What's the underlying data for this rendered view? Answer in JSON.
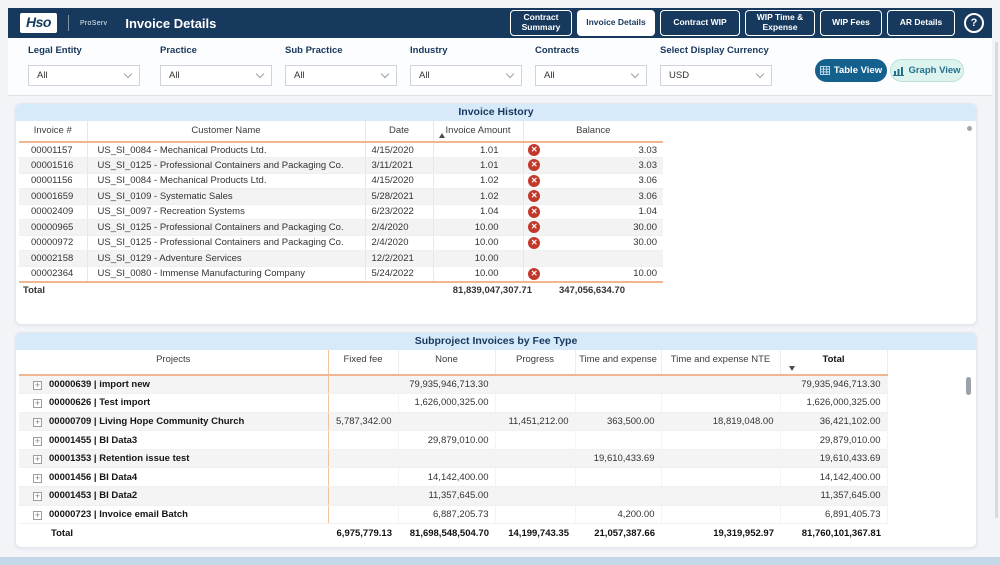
{
  "header": {
    "logo": "Hso",
    "product": "ProServ",
    "title": "Invoice Details",
    "nav_tabs": [
      {
        "label": "Contract Summary",
        "active": false
      },
      {
        "label": "Invoice Details",
        "active": true
      },
      {
        "label": "Contract WIP",
        "active": false
      },
      {
        "label": "WIP Time & Expense",
        "active": false
      },
      {
        "label": "WIP Fees",
        "active": false
      },
      {
        "label": "AR Details",
        "active": false
      }
    ],
    "help_label": "?"
  },
  "filters": [
    {
      "label": "Legal Entity",
      "value": "All"
    },
    {
      "label": "Practice",
      "value": "All"
    },
    {
      "label": "Sub Practice",
      "value": "All"
    },
    {
      "label": "Industry",
      "value": "All"
    },
    {
      "label": "Contracts",
      "value": "All"
    },
    {
      "label": "Select Display Currency",
      "value": "USD"
    }
  ],
  "view_buttons": {
    "table": "Table View",
    "graph": "Graph View"
  },
  "invoice_history": {
    "title": "Invoice History",
    "columns": [
      "Invoice #",
      "Customer Name",
      "Date",
      "Invoice Amount",
      "Balance"
    ],
    "sorted_by": "Invoice Amount ascending",
    "rows": [
      {
        "invoice": "00001157",
        "customer": "US_SI_0084 - Mechanical Products Ltd.",
        "date": "4/15/2020",
        "amount": "1.01",
        "flag": true,
        "balance": "3.03"
      },
      {
        "invoice": "00001516",
        "customer": "US_SI_0125 - Professional Containers and Packaging Co.",
        "date": "3/11/2021",
        "amount": "1.01",
        "flag": true,
        "balance": "3.03"
      },
      {
        "invoice": "00001156",
        "customer": "US_SI_0084 - Mechanical Products Ltd.",
        "date": "4/15/2020",
        "amount": "1.02",
        "flag": true,
        "balance": "3.06"
      },
      {
        "invoice": "00001659",
        "customer": "US_SI_0109 - Systematic Sales",
        "date": "5/28/2021",
        "amount": "1.02",
        "flag": true,
        "balance": "3.06"
      },
      {
        "invoice": "00002409",
        "customer": "US_SI_0097 - Recreation Systems",
        "date": "6/23/2022",
        "amount": "1.04",
        "flag": true,
        "balance": "1.04"
      },
      {
        "invoice": "00000965",
        "customer": "US_SI_0125 - Professional Containers and Packaging Co.",
        "date": "2/4/2020",
        "amount": "10.00",
        "flag": true,
        "balance": "30.00"
      },
      {
        "invoice": "00000972",
        "customer": "US_SI_0125 - Professional Containers and Packaging Co.",
        "date": "2/4/2020",
        "amount": "10.00",
        "flag": true,
        "balance": "30.00"
      },
      {
        "invoice": "00002158",
        "customer": "US_SI_0129 - Adventure Services",
        "date": "12/2/2021",
        "amount": "10.00",
        "flag": false,
        "balance": ""
      },
      {
        "invoice": "00002364",
        "customer": "US_SI_0080 - Immense Manufacturing Company",
        "date": "5/24/2022",
        "amount": "10.00",
        "flag": true,
        "balance": "10.00"
      }
    ],
    "total": {
      "label": "Total",
      "amount": "81,839,047,307.71",
      "balance": "347,056,634.70"
    }
  },
  "subproject_invoices": {
    "title": "Subproject Invoices by Fee Type",
    "columns": [
      "Projects",
      "Fixed fee",
      "None",
      "Progress",
      "Time and expense",
      "Time and expense NTE",
      "Total"
    ],
    "sorted_by": "Total descending",
    "rows": [
      {
        "project": "00000639 | import new",
        "fixed_fee": "",
        "none": "79,935,946,713.30",
        "progress": "",
        "te": "",
        "te_nte": "",
        "total": "79,935,946,713.30"
      },
      {
        "project": "00000626 | Test import",
        "fixed_fee": "",
        "none": "1,626,000,325.00",
        "progress": "",
        "te": "",
        "te_nte": "",
        "total": "1,626,000,325.00"
      },
      {
        "project": "00000709 | Living Hope Community Church",
        "fixed_fee": "5,787,342.00",
        "none": "",
        "progress": "11,451,212.00",
        "te": "363,500.00",
        "te_nte": "18,819,048.00",
        "total": "36,421,102.00"
      },
      {
        "project": "00001455 | BI Data3",
        "fixed_fee": "",
        "none": "29,879,010.00",
        "progress": "",
        "te": "",
        "te_nte": "",
        "total": "29,879,010.00"
      },
      {
        "project": "00001353 | Retention issue test",
        "fixed_fee": "",
        "none": "",
        "progress": "",
        "te": "19,610,433.69",
        "te_nte": "",
        "total": "19,610,433.69"
      },
      {
        "project": "00001456 | BI Data4",
        "fixed_fee": "",
        "none": "14,142,400.00",
        "progress": "",
        "te": "",
        "te_nte": "",
        "total": "14,142,400.00"
      },
      {
        "project": "00001453 | BI Data2",
        "fixed_fee": "",
        "none": "11,357,645.00",
        "progress": "",
        "te": "",
        "te_nte": "",
        "total": "11,357,645.00"
      },
      {
        "project": "00000723 | Invoice email Batch",
        "fixed_fee": "",
        "none": "6,887,205.73",
        "progress": "",
        "te": "4,200.00",
        "te_nte": "",
        "total": "6,891,405.73"
      }
    ],
    "total": {
      "label": "Total",
      "fixed_fee": "6,975,779.13",
      "none": "81,698,548,504.70",
      "progress": "14,199,743.35",
      "te": "21,057,387.66",
      "te_nte": "19,319,952.97",
      "total": "81,760,101,367.81"
    }
  },
  "colors": {
    "navy": "#17395d",
    "header_underline_orange": "#f0b692",
    "card_title_blue": "#d7eaf9",
    "error_red": "#c2392b",
    "table_view_bg": "#14618e",
    "graph_view_bg": "#ddf3ee",
    "footer_strip": "#c3d7e8"
  }
}
